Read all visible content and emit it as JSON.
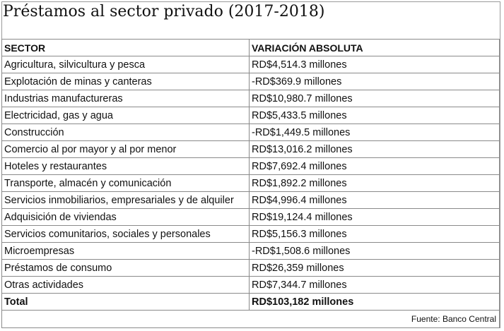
{
  "title": "Préstamos al sector privado (2017-2018)",
  "headers": {
    "sector": "SECTOR",
    "variation": "VARIACIÓN ABSOLUTA"
  },
  "rows": [
    {
      "sector": "Agricultura, silvicultura y pesca",
      "value": "RD$4,514.3 millones"
    },
    {
      "sector": "Explotación de minas y canteras",
      "value": "-RD$369.9 millones"
    },
    {
      "sector": "Industrias manufactureras",
      "value": "RD$10,980.7 millones"
    },
    {
      "sector": "Electricidad, gas y agua",
      "value": "RD$5,433.5 millones"
    },
    {
      "sector": "Construcción",
      "value": "-RD$1,449.5 millones"
    },
    {
      "sector": "Comercio al por mayor y al por menor",
      "value": "RD$13,016.2 millones"
    },
    {
      "sector": "Hoteles y restaurantes",
      "value": "RD$7,692.4 millones"
    },
    {
      "sector": "Transporte, almacén y comunicación",
      "value": "RD$1,892.2 millones"
    },
    {
      "sector": "Servicios inmobiliarios, empresariales y de alquiler",
      "value": "RD$4,996.4 millones"
    },
    {
      "sector": "Adquisición de viviendas",
      "value": "RD$19,124.4 millones"
    },
    {
      "sector": "Servicios comunitarios, sociales y personales",
      "value": "RD$5,156.3 millones"
    },
    {
      "sector": "Microempresas",
      "value": "-RD$1,508.6 millones"
    },
    {
      "sector": "Préstamos de consumo",
      "value": "RD$26,359 millones"
    },
    {
      "sector": "Otras actividades",
      "value": "RD$7,344.7 millones"
    }
  ],
  "total": {
    "label": "Total",
    "value": "RD$103,182 millones"
  },
  "source": "Fuente: Banco Central"
}
